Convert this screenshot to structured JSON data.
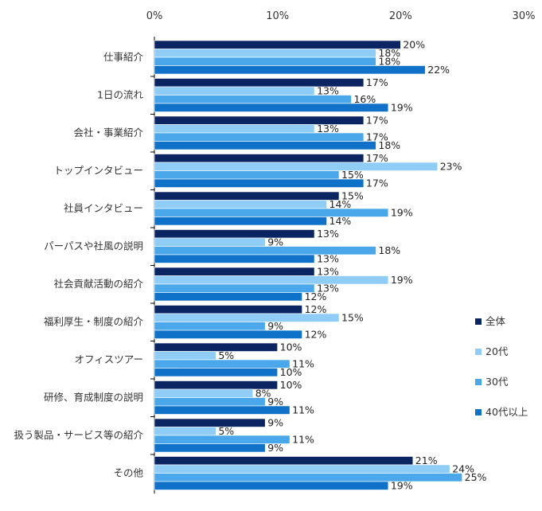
{
  "chart_data": {
    "type": "bar",
    "orientation": "horizontal",
    "unit_suffix": "%",
    "xlim": [
      0,
      30
    ],
    "x_ticks": [
      0,
      10,
      20,
      30
    ],
    "x_tick_labels": [
      "0%",
      "10%",
      "20%",
      "30%"
    ],
    "x_axis_position": "top",
    "grid": false,
    "legend_position": "right",
    "categories": [
      "仕事紹介",
      "1日の流れ",
      "会社・事業紹介",
      "トップインタビュー",
      "社員インタビュー",
      "パーパスや社風の説明",
      "社会貢献活動の紹介",
      "福利厚生・制度の紹介",
      "オフィスツアー",
      "研修、育成制度の説明",
      "扱う製品・サービス等の紹介",
      "その他"
    ],
    "series": [
      {
        "name": "全体",
        "color": "#0a2562",
        "values": [
          20,
          17,
          17,
          17,
          15,
          13,
          13,
          12,
          10,
          10,
          9,
          21
        ]
      },
      {
        "name": "20代",
        "color": "#8fcdf7",
        "values": [
          18,
          13,
          13,
          23,
          14,
          9,
          19,
          15,
          5,
          8,
          5,
          24
        ]
      },
      {
        "name": "30代",
        "color": "#4aa7ea",
        "values": [
          18,
          16,
          17,
          15,
          19,
          18,
          13,
          9,
          11,
          9,
          11,
          25
        ]
      },
      {
        "name": "40代以上",
        "color": "#0f72c8",
        "values": [
          22,
          19,
          18,
          17,
          14,
          13,
          12,
          12,
          10,
          11,
          9,
          19
        ]
      }
    ]
  }
}
